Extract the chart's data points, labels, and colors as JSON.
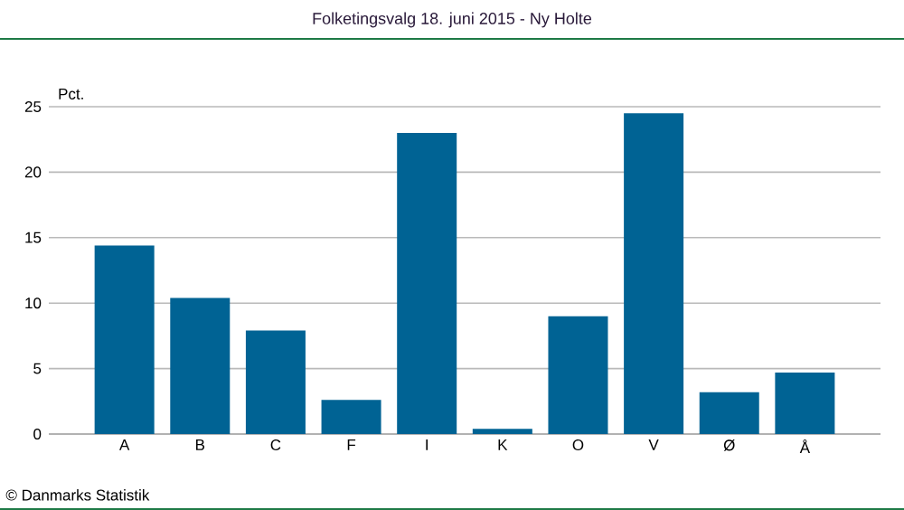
{
  "chart_data": {
    "type": "bar",
    "title": "Folketingsvalg 18. juni 2015 - Ny Holte",
    "ylabel": "Pct.",
    "categories": [
      "A",
      "B",
      "C",
      "F",
      "I",
      "K",
      "O",
      "V",
      "Ø",
      "Å"
    ],
    "values": [
      14.4,
      10.4,
      7.9,
      2.6,
      23.0,
      0.4,
      9.0,
      24.5,
      3.2,
      4.7
    ],
    "color": "#006394",
    "ylim": [
      0,
      25
    ],
    "yticks": [
      0,
      5,
      10,
      15,
      20,
      25
    ],
    "grid": "y",
    "annotations": [
      "© Danmarks Statistik"
    ]
  }
}
